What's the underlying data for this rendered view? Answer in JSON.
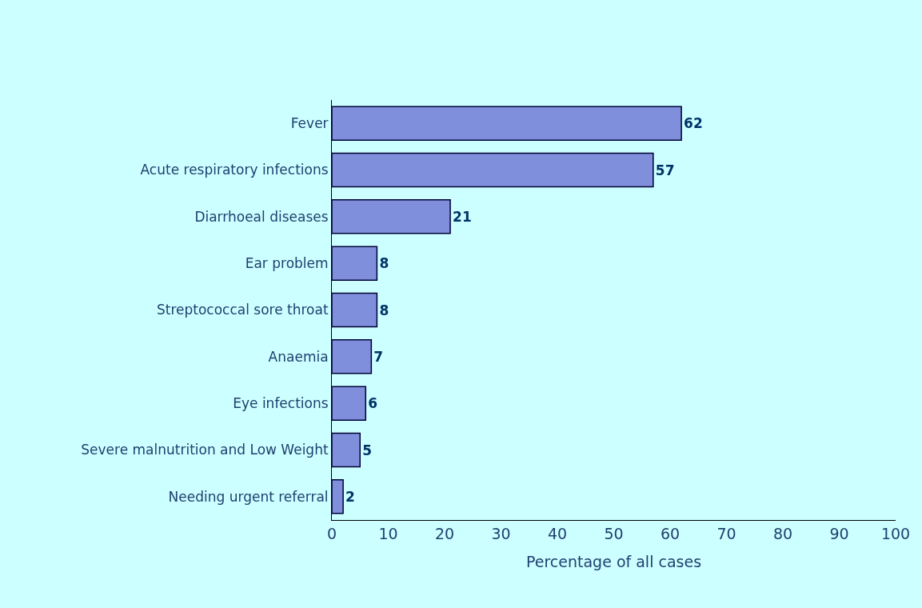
{
  "chart_data": {
    "type": "bar",
    "orientation": "horizontal",
    "xlabel": "Percentage of all cases",
    "categories": [
      "Fever",
      "Acute respiratory infections",
      "Diarrhoeal diseases",
      "Ear problem",
      "Streptococcal sore throat",
      "Anaemia",
      "Eye infections",
      "Severe malnutrition and Low Weight",
      "Needing urgent referral"
    ],
    "values": [
      62,
      57,
      21,
      8,
      8,
      7,
      6,
      5,
      2
    ],
    "color": "#7f8fdc",
    "xlim": [
      0,
      100
    ],
    "xticks": [
      0,
      10,
      20,
      30,
      40,
      50,
      60,
      70,
      80,
      90,
      100
    ],
    "grid": false,
    "data_labels": true
  }
}
